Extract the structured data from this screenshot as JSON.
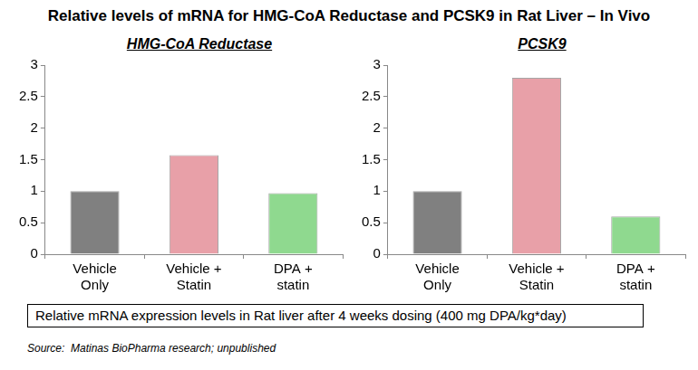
{
  "title": "Relative levels of mRNA for HMG-CoA Reductase and PCSK9 in Rat Liver – In Vivo",
  "caption": "Relative mRNA expression levels in Rat liver after 4 weeks dosing (400 mg DPA/kg*day)",
  "source": "Source:  Matinas BioPharma research; unpublished",
  "chart_data": [
    {
      "type": "bar",
      "title": "HMG-CoA Reductase",
      "categories": [
        "Vehicle Only",
        "Vehicle + Statin",
        "DPA + statin"
      ],
      "values": [
        1.0,
        1.57,
        0.97
      ],
      "colors": [
        "#808080",
        "#e8a0a8",
        "#8fd98f"
      ],
      "ylim": [
        0,
        3
      ],
      "yticks": [
        0,
        0.5,
        1,
        1.5,
        2,
        2.5,
        3
      ],
      "grid": false
    },
    {
      "type": "bar",
      "title": "PCSK9",
      "categories": [
        "Vehicle Only",
        "Vehicle + Statin",
        "DPA + statin"
      ],
      "values": [
        1.0,
        2.8,
        0.6
      ],
      "colors": [
        "#808080",
        "#e8a0a8",
        "#8fd98f"
      ],
      "ylim": [
        0,
        3
      ],
      "yticks": [
        0,
        0.5,
        1,
        1.5,
        2,
        2.5,
        3
      ],
      "grid": false
    }
  ]
}
